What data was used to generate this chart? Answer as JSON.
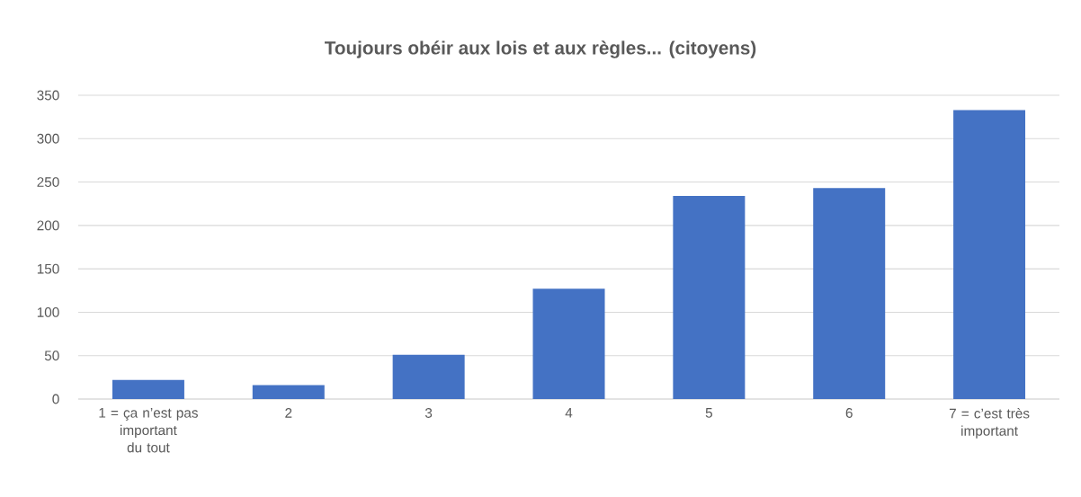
{
  "chart_data": {
    "type": "bar",
    "title": "Toujours obéir aux lois et aux règles... (citoyens)",
    "categories": [
      "1 = ça n’est pas important du tout",
      "2",
      "3",
      "4",
      "5",
      "6",
      "7 = c’est très important"
    ],
    "values": [
      22,
      16,
      51,
      127,
      234,
      243,
      333
    ],
    "color": "#4472c4",
    "ylim": [
      0,
      350
    ],
    "yticks": [
      0,
      50,
      100,
      150,
      200,
      250,
      300,
      350
    ],
    "grid": "y"
  }
}
